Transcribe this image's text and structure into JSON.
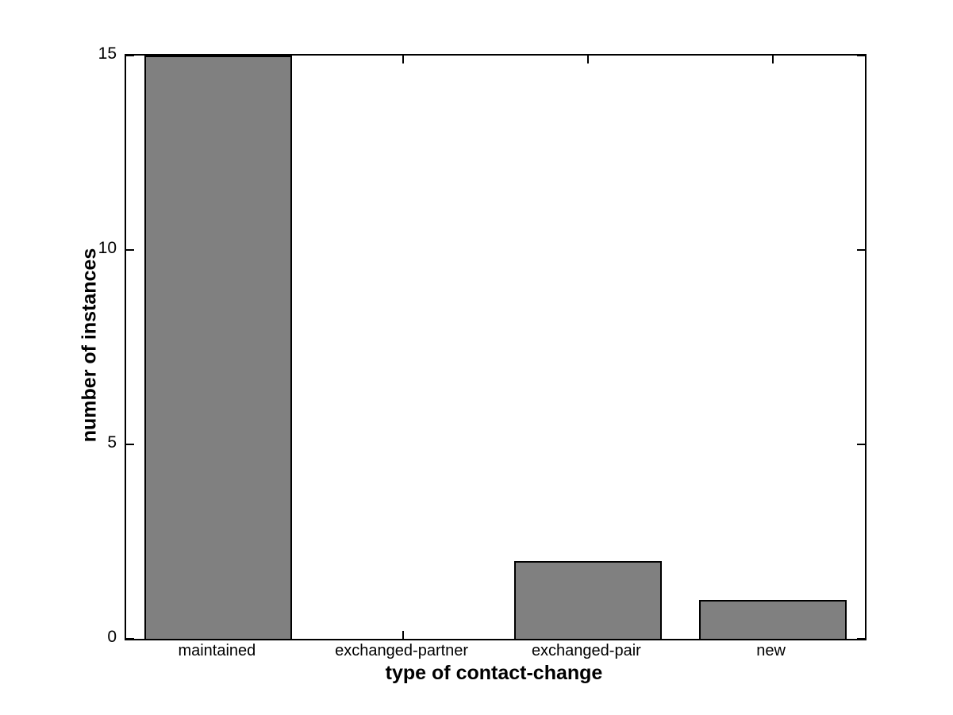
{
  "chart_data": {
    "type": "bar",
    "title": "",
    "categories": [
      "maintained",
      "exchanged-partner",
      "exchanged-pair",
      "new"
    ],
    "values": [
      15,
      0,
      2,
      1
    ],
    "xlabel": "type of contact-change",
    "ylabel": "number of instances",
    "ylim": [
      0,
      15
    ],
    "yticks": [
      0,
      5,
      10,
      15
    ],
    "ytick_labels": [
      "0",
      "5",
      "10",
      "15"
    ],
    "bar_width_fraction": 0.8,
    "bar_color": "#808080",
    "bar_edge_color": "#000000",
    "axis_color": "#000000",
    "text_color": "#000000",
    "background_color": "#ffffff",
    "grid": false,
    "legend": null,
    "tick_direction": "in",
    "box": true
  }
}
